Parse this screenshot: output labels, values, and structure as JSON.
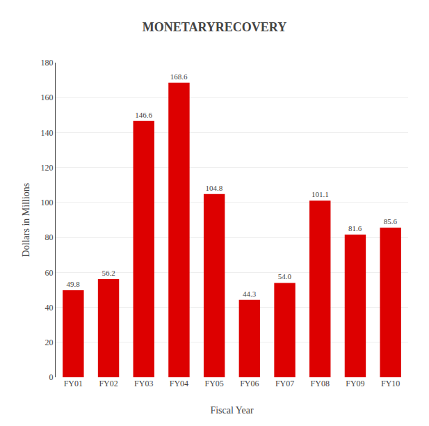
{
  "chart_data": {
    "type": "bar",
    "title": "MONETARYRECOVERY",
    "xlabel": "Fiscal Year",
    "ylabel": "Dollars in Millions",
    "categories": [
      "FY01",
      "FY02",
      "FY03",
      "FY04",
      "FY05",
      "FY06",
      "FY07",
      "FY08",
      "FY09",
      "FY10"
    ],
    "values": [
      49.8,
      56.2,
      146.6,
      168.6,
      104.8,
      44.3,
      54.0,
      101.1,
      81.6,
      85.6
    ],
    "value_labels": [
      "49.8",
      "56.2",
      "146.6",
      "168.6",
      "104.8",
      "44.3",
      "54.0",
      "101.1",
      "81.6",
      "85.6"
    ],
    "data_labels": true,
    "color": "#dd0000",
    "ylim": [
      0,
      180
    ],
    "yticks": [
      0,
      20,
      40,
      60,
      80,
      100,
      120,
      140,
      160,
      180
    ],
    "grid": true
  }
}
